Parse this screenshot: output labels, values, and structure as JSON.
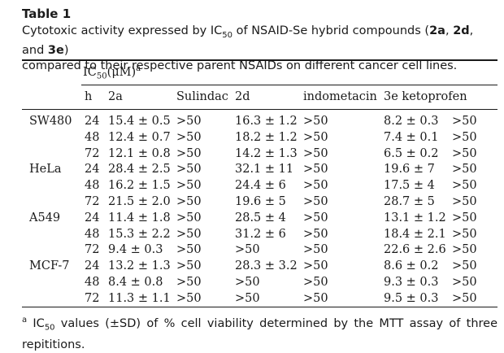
{
  "table": {
    "label": "Table 1",
    "caption_parts": [
      "Cytotoxic activity expressed by IC",
      "50",
      " of NSAID-Se hybrid compounds (",
      "2a",
      ", ",
      "2d",
      ", and ",
      "3e",
      ")",
      "compared to their respective parent NSAIDs on different cancer cell lines."
    ],
    "ic_header": {
      "main": "IC",
      "sub": "50",
      "unit": "(μM)",
      "sup": "a"
    },
    "columns": [
      "h",
      "2a",
      "Sulindac",
      "2d",
      "indometacin",
      "3e",
      "ketoprofen"
    ],
    "rows": [
      {
        "line": "SW480",
        "h": "24",
        "v2a": "15.4 ± 0.5",
        "sulindac": ">50",
        "v2d": "16.3 ± 1.2",
        "indometacin": ">50",
        "v3e": "8.2 ± 0.3",
        "ketoprofen": ">50"
      },
      {
        "line": "",
        "h": "48",
        "v2a": "12.4 ± 0.7",
        "sulindac": ">50",
        "v2d": "18.2 ± 1.2",
        "indometacin": ">50",
        "v3e": "7.4 ± 0.1",
        "ketoprofen": ">50"
      },
      {
        "line": "",
        "h": "72",
        "v2a": "12.1 ± 0.8",
        "sulindac": ">50",
        "v2d": "14.2 ± 1.3",
        "indometacin": ">50",
        "v3e": "6.5 ± 0.2",
        "ketoprofen": ">50"
      },
      {
        "line": "HeLa",
        "h": "24",
        "v2a": "28.4 ± 2.5",
        "sulindac": ">50",
        "v2d": "32.1 ± 11",
        "indometacin": ">50",
        "v3e": "19.6 ± 7",
        "ketoprofen": ">50"
      },
      {
        "line": "",
        "h": "48",
        "v2a": "16.2 ± 1.5",
        "sulindac": ">50",
        "v2d": "24.4 ± 6",
        "indometacin": ">50",
        "v3e": "17.5 ± 4",
        "ketoprofen": ">50"
      },
      {
        "line": "",
        "h": "72",
        "v2a": "21.5 ± 2.0",
        "sulindac": ">50",
        "v2d": "19.6 ± 5",
        "indometacin": ">50",
        "v3e": "28.7 ± 5",
        "ketoprofen": ">50"
      },
      {
        "line": "A549",
        "h": "24",
        "v2a": "11.4 ± 1.8",
        "sulindac": ">50",
        "v2d": "28.5 ± 4",
        "indometacin": ">50",
        "v3e": "13.1 ± 1.2",
        "ketoprofen": ">50"
      },
      {
        "line": "",
        "h": "48",
        "v2a": "15.3 ± 2.2",
        "sulindac": ">50",
        "v2d": "31.2 ± 6",
        "indometacin": ">50",
        "v3e": "18.4 ± 2.1",
        "ketoprofen": ">50"
      },
      {
        "line": "",
        "h": "72",
        "v2a": "9.4 ± 0.3",
        "sulindac": ">50",
        "v2d": ">50",
        "indometacin": ">50",
        "v3e": "22.6 ± 2.6",
        "ketoprofen": ">50"
      },
      {
        "line": "MCF-7",
        "h": "24",
        "v2a": "13.2 ± 1.3",
        "sulindac": ">50",
        "v2d": "28.3 ± 3.2",
        "indometacin": ">50",
        "v3e": "8.6 ± 0.2",
        "ketoprofen": ">50"
      },
      {
        "line": "",
        "h": "48",
        "v2a": "8.4 ± 0.8",
        "sulindac": ">50",
        "v2d": ">50",
        "indometacin": ">50",
        "v3e": "9.3 ± 0.3",
        "ketoprofen": ">50"
      },
      {
        "line": "",
        "h": "72",
        "v2a": "11.3 ± 1.1",
        "sulindac": ">50",
        "v2d": ">50",
        "indometacin": ">50",
        "v3e": "9.5 ± 0.3",
        "ketoprofen": ">50"
      }
    ],
    "footnote_parts": [
      "a",
      " IC",
      "50",
      " values (±SD) of % cell viability determined by the MTT assay of three repititions."
    ]
  }
}
